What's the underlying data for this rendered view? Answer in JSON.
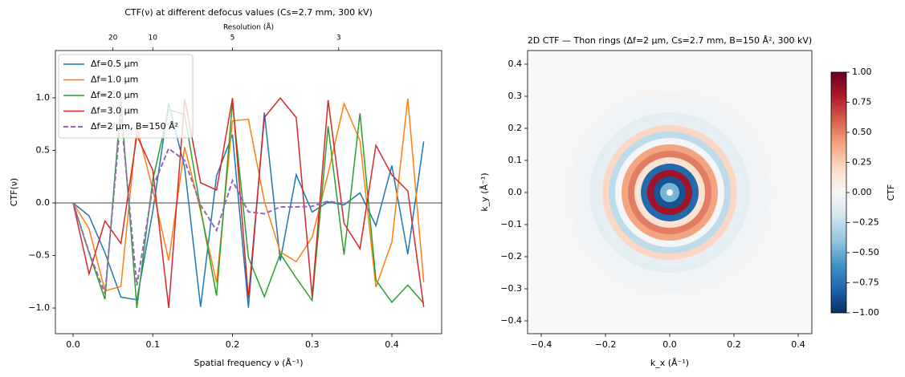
{
  "chart_data": [
    {
      "type": "line",
      "title": "CTF(ν) at different defocus values  (Cs=2.7 mm, 300 kV)",
      "xlabel": "Spatial frequency ν (Å⁻¹)",
      "ylabel": "CTF(ν)",
      "x2label": "Resolution (Å)",
      "x": [
        0,
        0.02,
        0.04,
        0.06,
        0.08,
        0.1,
        0.12,
        0.14,
        0.16,
        0.18,
        0.2,
        0.22,
        0.24,
        0.26,
        0.28,
        0.3,
        0.32,
        0.34,
        0.36,
        0.38,
        0.4,
        0.42,
        0.44
      ],
      "series": [
        {
          "name": "Δf=0.5 µm",
          "color": "#1f77b4",
          "linestyle": "solid",
          "values": [
            0,
            -0.123,
            -0.474,
            -0.896,
            -0.922,
            -0.08,
            0.948,
            0.337,
            -0.989,
            0.257,
            0.651,
            -0.997,
            0.861,
            -0.551,
            0.269,
            -0.087,
            0.009,
            -0.019,
            0.096,
            -0.216,
            0.356,
            -0.487,
            0.585
          ]
        },
        {
          "name": "Δf=1.0 µm",
          "color": "#ff7f0e",
          "linestyle": "solid",
          "values": [
            0,
            -0.245,
            -0.836,
            -0.794,
            0.722,
            0.126,
            -0.548,
            0.532,
            -0.076,
            -0.759,
            0.781,
            0.796,
            0.016,
            -0.465,
            -0.56,
            -0.326,
            0.281,
            0.946,
            0.593,
            -0.8,
            -0.373,
            0.993,
            -0.754
          ]
        },
        {
          "name": "Δf=2.0 µm",
          "color": "#2ca02c",
          "linestyle": "solid",
          "values": [
            0,
            -0.475,
            -0.917,
            0.966,
            -0.999,
            0.22,
            0.888,
            0.841,
            -0.056,
            -0.882,
            0.957,
            -0.519,
            -0.892,
            -0.485,
            -0.714,
            -0.928,
            0.73,
            -0.493,
            0.853,
            -0.734,
            -0.945,
            -0.781,
            -0.956
          ]
        },
        {
          "name": "Δf=3.0 µm",
          "color": "#d62728",
          "linestyle": "solid",
          "values": [
            0,
            -0.676,
            -0.171,
            -0.386,
            0.642,
            0.311,
            -0.999,
            0.991,
            0.192,
            0.123,
            0.997,
            -0.906,
            0.813,
            0.998,
            0.813,
            -0.894,
            0.978,
            -0.195,
            -0.435,
            0.548,
            0.266,
            0.115,
            -0.99
          ]
        },
        {
          "name": "Δf=2 µm, B=150 Å²",
          "color": "#9467bd",
          "linestyle": "dashed",
          "values": [
            0,
            -0.468,
            -0.864,
            0.844,
            -0.786,
            0.151,
            0.518,
            0.404,
            -0.021,
            -0.262,
            0.213,
            -0.085,
            -0.103,
            -0.038,
            -0.038,
            -0.032,
            0.016,
            -0.007,
            null,
            null,
            null,
            null,
            null
          ]
        }
      ],
      "xlim": [
        -0.0222,
        0.4625
      ],
      "ylim": [
        -1.244,
        1.45
      ],
      "xticks": [
        {
          "value": 0,
          "label": "0.0"
        },
        {
          "value": 0.1,
          "label": "0.1"
        },
        {
          "value": 0.2,
          "label": "0.2"
        },
        {
          "value": 0.3,
          "label": "0.3"
        },
        {
          "value": 0.4,
          "label": "0.4"
        }
      ],
      "yticks": [
        {
          "value": -1,
          "label": "−1.0"
        },
        {
          "value": -0.5,
          "label": "−0.5"
        },
        {
          "value": 0,
          "label": "0.0"
        },
        {
          "value": 0.5,
          "label": "0.5"
        },
        {
          "value": 1,
          "label": "1.0"
        }
      ],
      "x2ticks": [
        {
          "value": 0.05,
          "label": "20"
        },
        {
          "value": 0.1,
          "label": "10"
        },
        {
          "value": 0.2,
          "label": "5"
        },
        {
          "value": 0.3333,
          "label": "3"
        }
      ],
      "hline": 0,
      "legend": "upper left"
    },
    {
      "type": "heatmap",
      "title": "2D CTF — Thon rings  (Δf=2 µm, Cs=2.7 mm, B=150 Å², 300 kV)",
      "xlabel": "k_x (Å⁻¹)",
      "ylabel": "k_y (Å⁻¹)",
      "radius": [
        0,
        0.02,
        0.04,
        0.06,
        0.08,
        0.1,
        0.12,
        0.14,
        0.16,
        0.18,
        0.2,
        0.22,
        0.24,
        0.26,
        0.28,
        0.3,
        0.32,
        0.34
      ],
      "values": [
        0,
        -0.468,
        -0.864,
        0.844,
        -0.786,
        0.151,
        0.518,
        0.404,
        -0.021,
        -0.262,
        0.213,
        -0.085,
        -0.103,
        -0.038,
        -0.038,
        -0.032,
        0.016,
        -0.007
      ],
      "xlim": [
        -0.4425,
        0.4425
      ],
      "ylim": [
        -0.44,
        0.4425
      ],
      "xticks": [
        {
          "value": -0.4,
          "label": "−0.4"
        },
        {
          "value": -0.2,
          "label": "−0.2"
        },
        {
          "value": 0,
          "label": "0.0"
        },
        {
          "value": 0.2,
          "label": "0.2"
        },
        {
          "value": 0.4,
          "label": "0.4"
        }
      ],
      "yticks": [
        {
          "value": -0.4,
          "label": "−0.4"
        },
        {
          "value": -0.3,
          "label": "−0.3"
        },
        {
          "value": -0.2,
          "label": "−0.2"
        },
        {
          "value": -0.1,
          "label": "−0.1"
        },
        {
          "value": 0,
          "label": "0.0"
        },
        {
          "value": 0.1,
          "label": "0.1"
        },
        {
          "value": 0.2,
          "label": "0.2"
        },
        {
          "value": 0.3,
          "label": "0.3"
        },
        {
          "value": 0.4,
          "label": "0.4"
        }
      ],
      "colormap": "RdBu_r",
      "clim": [
        -1,
        1
      ],
      "colorbar_label": "CTF",
      "colorbar_ticks": [
        {
          "value": -1,
          "label": "−1.00"
        },
        {
          "value": -0.75,
          "label": "−0.75"
        },
        {
          "value": -0.5,
          "label": "−0.50"
        },
        {
          "value": -0.25,
          "label": "−0.25"
        },
        {
          "value": 0,
          "label": "0.00"
        },
        {
          "value": 0.25,
          "label": "0.25"
        },
        {
          "value": 0.5,
          "label": "0.50"
        },
        {
          "value": 0.75,
          "label": "0.75"
        },
        {
          "value": 1,
          "label": "1.00"
        }
      ]
    }
  ]
}
